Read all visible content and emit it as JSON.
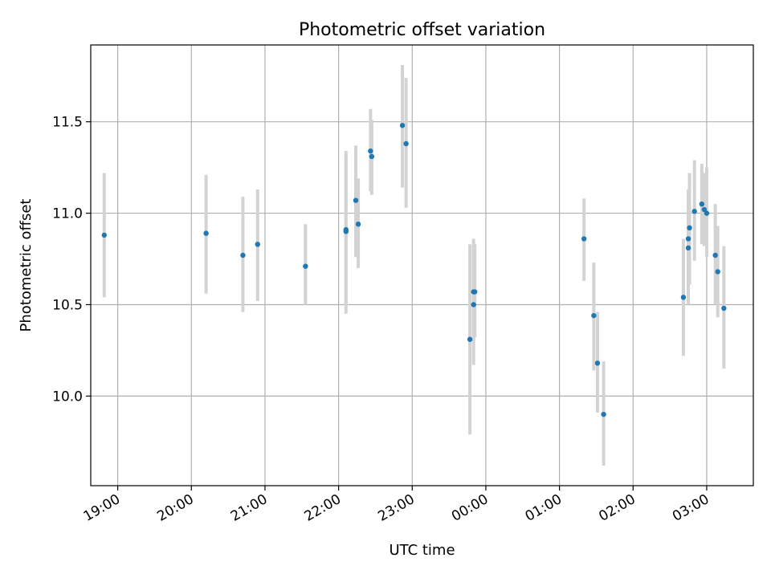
{
  "chart_data": {
    "type": "scatter",
    "title": "Photometric offset variation",
    "xlabel": "UTC time",
    "ylabel": "Photometric offset",
    "grid": true,
    "x_is_time": true,
    "x_reference_date": "",
    "xlim": [
      "18:38",
      "03:38"
    ],
    "ylim": [
      9.51,
      11.92
    ],
    "xticks": [
      "19:00",
      "20:00",
      "21:00",
      "22:00",
      "23:00",
      "00:00",
      "01:00",
      "02:00",
      "03:00"
    ],
    "yticks": [
      10.0,
      10.5,
      11.0,
      11.5
    ],
    "ytick_labels": [
      "10.0",
      "10.5",
      "11.0",
      "11.5"
    ],
    "point_color": "#1f77b4",
    "errorbar_color": "#d3d3d3",
    "series": [
      {
        "points": [
          {
            "x": "18:49",
            "y": 10.88,
            "lo": 10.54,
            "hi": 11.22
          },
          {
            "x": "20:12",
            "y": 10.89,
            "lo": 10.56,
            "hi": 11.21
          },
          {
            "x": "20:42",
            "y": 10.77,
            "lo": 10.46,
            "hi": 11.09
          },
          {
            "x": "20:54",
            "y": 10.83,
            "lo": 10.52,
            "hi": 11.13
          },
          {
            "x": "21:33",
            "y": 10.71,
            "lo": 10.5,
            "hi": 10.94
          },
          {
            "x": "22:06",
            "y": 10.9,
            "lo": 10.45,
            "hi": 11.34
          },
          {
            "x": "22:06",
            "y": 10.91,
            "lo": 10.5,
            "hi": 11.3
          },
          {
            "x": "22:14",
            "y": 11.07,
            "lo": 10.76,
            "hi": 11.37
          },
          {
            "x": "22:16",
            "y": 10.94,
            "lo": 10.7,
            "hi": 11.19
          },
          {
            "x": "22:26",
            "y": 11.34,
            "lo": 11.12,
            "hi": 11.57
          },
          {
            "x": "22:27",
            "y": 11.31,
            "lo": 11.1,
            "hi": 11.51
          },
          {
            "x": "22:52",
            "y": 11.48,
            "lo": 11.14,
            "hi": 11.81
          },
          {
            "x": "22:55",
            "y": 11.38,
            "lo": 11.03,
            "hi": 11.74
          },
          {
            "x": "23:47",
            "y": 10.31,
            "lo": 9.79,
            "hi": 10.83
          },
          {
            "x": "23:50",
            "y": 10.57,
            "lo": 10.3,
            "hi": 10.86
          },
          {
            "x": "23:50",
            "y": 10.5,
            "lo": 10.17,
            "hi": 10.82
          },
          {
            "x": "23:51",
            "y": 10.57,
            "lo": 10.32,
            "hi": 10.83
          },
          {
            "x": "01:20",
            "y": 10.86,
            "lo": 10.63,
            "hi": 11.08
          },
          {
            "x": "01:28",
            "y": 10.44,
            "lo": 10.14,
            "hi": 10.73
          },
          {
            "x": "01:31",
            "y": 10.18,
            "lo": 9.91,
            "hi": 10.46
          },
          {
            "x": "01:36",
            "y": 9.9,
            "lo": 9.62,
            "hi": 10.19
          },
          {
            "x": "02:41",
            "y": 10.54,
            "lo": 10.22,
            "hi": 10.86
          },
          {
            "x": "02:45",
            "y": 10.81,
            "lo": 10.5,
            "hi": 11.13
          },
          {
            "x": "02:45",
            "y": 10.86,
            "lo": 10.61,
            "hi": 11.11
          },
          {
            "x": "02:46",
            "y": 10.92,
            "lo": 10.61,
            "hi": 11.22
          },
          {
            "x": "02:50",
            "y": 11.01,
            "lo": 10.74,
            "hi": 11.29
          },
          {
            "x": "02:56",
            "y": 11.05,
            "lo": 10.83,
            "hi": 11.27
          },
          {
            "x": "02:58",
            "y": 11.02,
            "lo": 10.82,
            "hi": 11.22
          },
          {
            "x": "03:00",
            "y": 11.0,
            "lo": 10.76,
            "hi": 11.25
          },
          {
            "x": "03:07",
            "y": 10.77,
            "lo": 10.5,
            "hi": 11.05
          },
          {
            "x": "03:09",
            "y": 10.68,
            "lo": 10.43,
            "hi": 10.93
          },
          {
            "x": "03:14",
            "y": 10.48,
            "lo": 10.15,
            "hi": 10.82
          }
        ]
      }
    ]
  }
}
